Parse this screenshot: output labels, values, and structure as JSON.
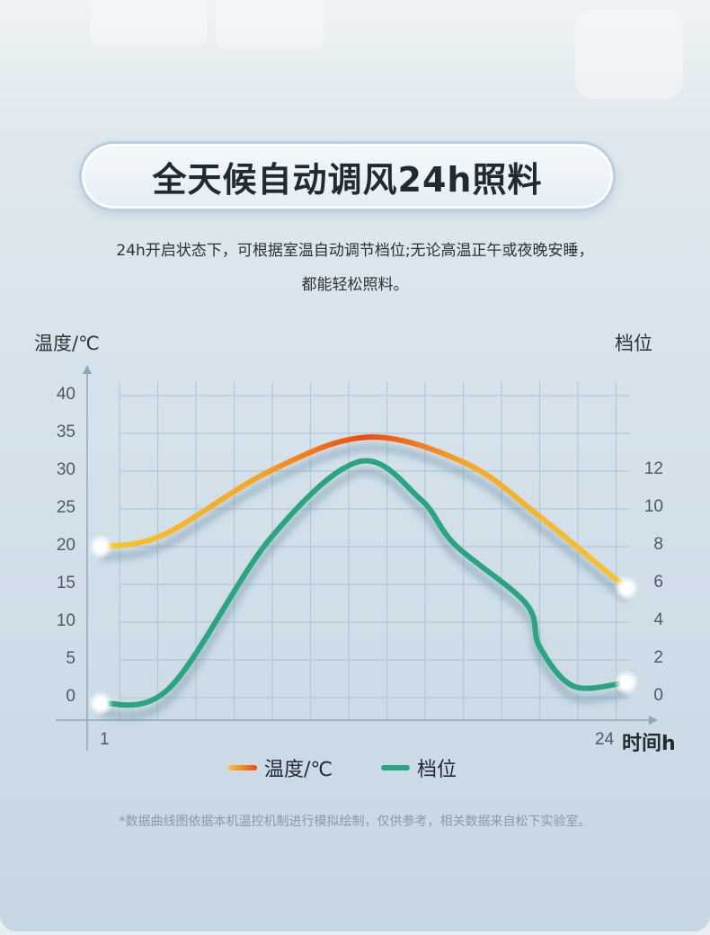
{
  "title": "全天候自动调风24h照料",
  "description": [
    "24h开启状态下，可根据室温自动调节档位;无论高温正午或夜晚安睡，",
    "都能轻松照料。"
  ],
  "footnote": "*数据曲线图依据本机温控机制进行模拟绘制，仅供参考，相关数据来自松下实验室。",
  "colors": {
    "temperature": "#f5b82a",
    "temperature_peak": "#ee4a10",
    "gear": "#2aa57d"
  },
  "chart_data": {
    "type": "line",
    "left_axis_label": "温度/℃",
    "right_axis_label": "档位",
    "x_label": "时间h",
    "x_ticks": [
      "1",
      "24"
    ],
    "xlim": [
      1,
      24
    ],
    "left_ticks": [
      "40",
      "35",
      "30",
      "25",
      "20",
      "15",
      "10",
      "5",
      "0"
    ],
    "right_ticks": [
      "12",
      "10",
      "8",
      "6",
      "4",
      "2",
      "0"
    ],
    "ylim_left": [
      0,
      40
    ],
    "ylim_right": [
      0,
      16
    ],
    "grid": true,
    "legend_position": "bottom",
    "series": [
      {
        "name": "温度/℃",
        "axis": "left",
        "x": [
          1,
          3.7,
          8.4,
          12.7,
          17,
          20.2,
          24
        ],
        "y": [
          20,
          21.5,
          30,
          34.5,
          31,
          24,
          14.5
        ]
      },
      {
        "name": "档位",
        "axis": "right",
        "x": [
          1,
          4,
          8.4,
          12.3,
          15,
          16.5,
          19.6,
          20.2,
          21.7,
          24
        ],
        "y": [
          -0.3,
          0.5,
          8.4,
          12.5,
          10.5,
          8.1,
          5,
          2.7,
          0.6,
          0.8
        ]
      }
    ]
  }
}
